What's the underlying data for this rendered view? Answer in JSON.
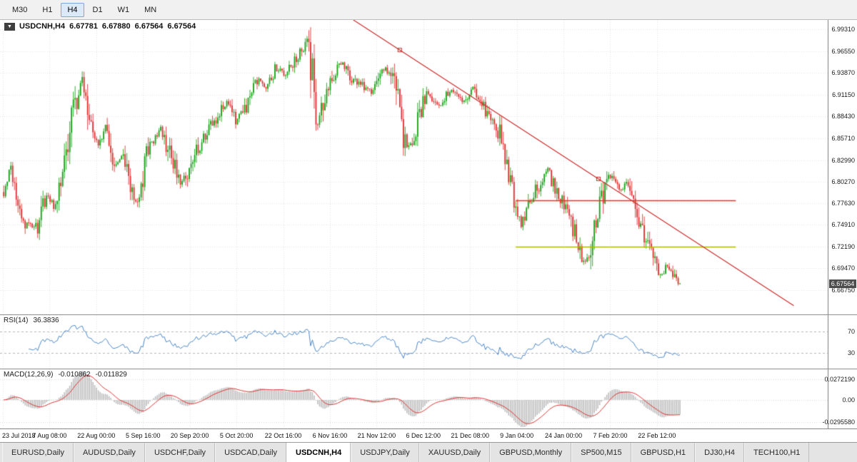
{
  "icons": {
    "dropdown": "▼"
  },
  "toolbar": {
    "timeframes": [
      "M30",
      "H1",
      "H4",
      "D1",
      "W1",
      "MN"
    ],
    "active": "H4"
  },
  "chart": {
    "title": {
      "symbol": "USDCNH,H4",
      "open": "6.67781",
      "high": "6.67880",
      "low": "6.67564",
      "close": "6.67564"
    },
    "current_price": "6.67564",
    "price_axis_labels": [
      "6.99310",
      "6.96550",
      "6.93870",
      "6.91150",
      "6.88430",
      "6.85710",
      "6.82990",
      "6.80270",
      "6.77630",
      "6.74910",
      "6.72190",
      "6.69470",
      "6.66750"
    ],
    "time_axis_labels": [
      "23 Jul 2018",
      "7 Aug 08:00",
      "22 Aug 00:00",
      "5 Sep 16:00",
      "20 Sep 20:00",
      "5 Oct 20:00",
      "22 Oct 16:00",
      "6 Nov 16:00",
      "21 Nov 12:00",
      "6 Dec 12:00",
      "21 Dec 08:00",
      "9 Jan 04:00",
      "24 Jan 00:00",
      "7 Feb 20:00",
      "22 Feb 12:00"
    ]
  },
  "rsi": {
    "label": "RSI(14)",
    "value": "36.3836",
    "axis_labels": [
      "70",
      "30"
    ],
    "levels": [
      70,
      30
    ]
  },
  "macd": {
    "label": "MACD(12,26,9)",
    "value_main": "-0.010862",
    "value_signal": "-0.011829",
    "axis_labels": [
      "0.0272190",
      "0.00",
      "-0.0295580"
    ]
  },
  "tabs": {
    "active": "USDCNH,H4",
    "items": [
      "EURUSD,Daily",
      "AUDUSD,Daily",
      "USDCHF,Daily",
      "USDCAD,Daily",
      "USDCNH,H4",
      "USDJPY,Daily",
      "XAUUSD,Daily",
      "GBPUSD,Monthly",
      "SP500,M15",
      "GBPUSD,H1",
      "DJ30,H4",
      "TECH100,H1"
    ]
  },
  "colors": {
    "up": "#18a318",
    "down": "#e03232",
    "rsi_line": "#4a86c8",
    "rsi_level": "#b5b5b5",
    "macd_hist": "#bdbdbd",
    "macd_signal": "#e03232",
    "trendline": "#cc2b2b",
    "hline_red": "#ff2626",
    "hline_olive": "#b0b800",
    "grid": "#e3e3e3",
    "badge_bg": "#4d4d4d"
  },
  "chart_data": {
    "type": "candlestick",
    "symbol": "USDCNH",
    "timeframe": "H4",
    "price_range": {
      "top": 7.005,
      "bottom": 6.637
    },
    "candle_count": 380,
    "data_width_fraction": 0.826,
    "time_grid_end_fraction": 0.7937,
    "seed": 20190222,
    "price_path": [
      [
        0.0,
        6.79
      ],
      [
        0.01,
        6.822
      ],
      [
        0.018,
        6.778
      ],
      [
        0.031,
        6.752
      ],
      [
        0.05,
        6.745
      ],
      [
        0.063,
        6.788
      ],
      [
        0.075,
        6.772
      ],
      [
        0.089,
        6.825
      ],
      [
        0.102,
        6.885
      ],
      [
        0.115,
        6.933
      ],
      [
        0.127,
        6.868
      ],
      [
        0.141,
        6.848
      ],
      [
        0.151,
        6.875
      ],
      [
        0.165,
        6.82
      ],
      [
        0.177,
        6.838
      ],
      [
        0.19,
        6.782
      ],
      [
        0.198,
        6.772
      ],
      [
        0.214,
        6.845
      ],
      [
        0.232,
        6.868
      ],
      [
        0.248,
        6.832
      ],
      [
        0.263,
        6.8
      ],
      [
        0.28,
        6.832
      ],
      [
        0.295,
        6.86
      ],
      [
        0.311,
        6.878
      ],
      [
        0.332,
        6.905
      ],
      [
        0.344,
        6.878
      ],
      [
        0.36,
        6.898
      ],
      [
        0.376,
        6.93
      ],
      [
        0.39,
        6.918
      ],
      [
        0.402,
        6.945
      ],
      [
        0.415,
        6.938
      ],
      [
        0.43,
        6.955
      ],
      [
        0.449,
        6.975
      ],
      [
        0.458,
        6.93
      ],
      [
        0.464,
        6.868
      ],
      [
        0.472,
        6.905
      ],
      [
        0.482,
        6.928
      ],
      [
        0.501,
        6.952
      ],
      [
        0.512,
        6.935
      ],
      [
        0.522,
        6.928
      ],
      [
        0.543,
        6.915
      ],
      [
        0.556,
        6.932
      ],
      [
        0.564,
        6.945
      ],
      [
        0.578,
        6.928
      ],
      [
        0.59,
        6.858
      ],
      [
        0.6,
        6.845
      ],
      [
        0.613,
        6.882
      ],
      [
        0.626,
        6.915
      ],
      [
        0.642,
        6.898
      ],
      [
        0.663,
        6.918
      ],
      [
        0.678,
        6.905
      ],
      [
        0.694,
        6.92
      ],
      [
        0.71,
        6.895
      ],
      [
        0.725,
        6.878
      ],
      [
        0.736,
        6.858
      ],
      [
        0.746,
        6.822
      ],
      [
        0.757,
        6.775
      ],
      [
        0.765,
        6.748
      ],
      [
        0.778,
        6.778
      ],
      [
        0.791,
        6.798
      ],
      [
        0.804,
        6.822
      ],
      [
        0.816,
        6.792
      ],
      [
        0.83,
        6.775
      ],
      [
        0.842,
        6.745
      ],
      [
        0.854,
        6.712
      ],
      [
        0.862,
        6.698
      ],
      [
        0.875,
        6.748
      ],
      [
        0.887,
        6.788
      ],
      [
        0.898,
        6.812
      ],
      [
        0.91,
        6.79
      ],
      [
        0.921,
        6.8
      ],
      [
        0.932,
        6.775
      ],
      [
        0.943,
        6.748
      ],
      [
        0.953,
        6.724
      ],
      [
        0.963,
        6.7
      ],
      [
        0.972,
        6.682
      ],
      [
        0.981,
        6.7
      ],
      [
        0.99,
        6.682
      ],
      [
        1.0,
        6.676
      ]
    ],
    "overlays": {
      "trendline": {
        "x1f": 0.427,
        "p1": 7.005,
        "x2f": 0.959,
        "p2": 6.648,
        "markers": [
          0.483,
          0.723
        ]
      },
      "hlines": [
        {
          "price": 6.78,
          "x1f": 0.623,
          "x2f": 0.889,
          "color_key": "hline_red"
        },
        {
          "price": 6.7217,
          "x1f": 0.623,
          "x2f": 0.889,
          "color_key": "hline_olive"
        }
      ]
    },
    "indicators": {
      "rsi_period": 14,
      "macd_fast": 12,
      "macd_slow": 26,
      "macd_signal": 9
    }
  }
}
